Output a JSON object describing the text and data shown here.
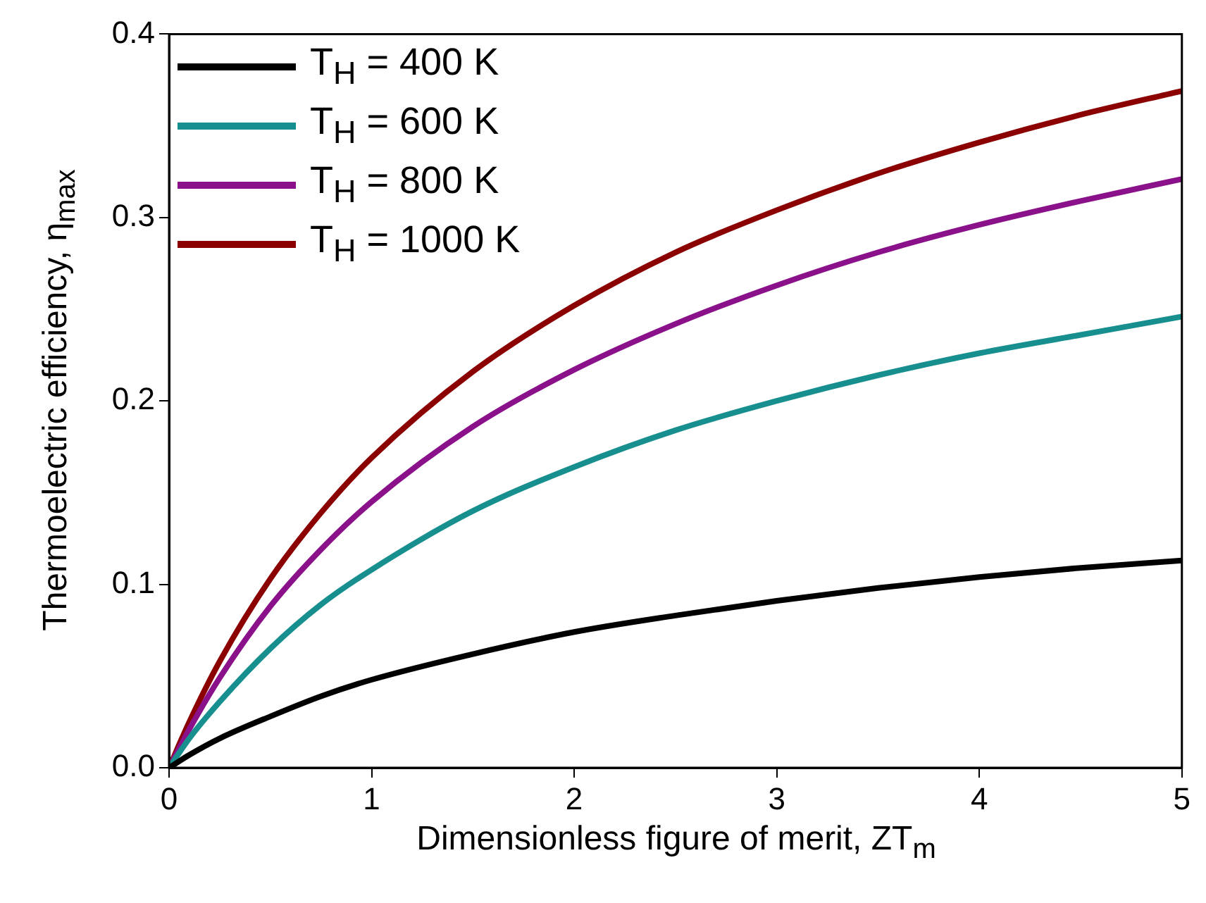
{
  "chart_data": {
    "type": "line",
    "xlabel": "Dimensionless figure of merit, ZT$_{m}$",
    "ylabel": "Thermoelectric efficiency, η$_{max}$",
    "x": [
      0,
      0.1,
      0.25,
      0.5,
      0.75,
      1,
      1.5,
      2,
      2.5,
      3,
      3.5,
      4,
      4.5,
      5
    ],
    "series": [
      {
        "name": "T$_{H}$ = 400 K",
        "color": "#000000",
        "values": [
          0,
          0.007,
          0.016,
          0.028,
          0.039,
          0.048,
          0.062,
          0.074,
          0.083,
          0.091,
          0.098,
          0.104,
          0.109,
          0.113
        ]
      },
      {
        "name": "T$_{H}$ = 600 K",
        "color": "#178f8f",
        "values": [
          0,
          0.016,
          0.036,
          0.065,
          0.089,
          0.108,
          0.14,
          0.164,
          0.184,
          0.2,
          0.214,
          0.226,
          0.236,
          0.246
        ]
      },
      {
        "name": "T$_{H}$ = 800 K",
        "color": "#8b118b",
        "values": [
          0,
          0.021,
          0.049,
          0.088,
          0.119,
          0.145,
          0.186,
          0.217,
          0.242,
          0.263,
          0.281,
          0.296,
          0.309,
          0.321
        ]
      },
      {
        "name": "T$_{H}$ = 1000 K",
        "color": "#8b0000",
        "values": [
          0,
          0.025,
          0.058,
          0.103,
          0.139,
          0.169,
          0.216,
          0.252,
          0.281,
          0.304,
          0.324,
          0.341,
          0.356,
          0.369
        ]
      }
    ],
    "xlim": [
      0,
      5
    ],
    "xticks": [
      0,
      1,
      2,
      3,
      4,
      5
    ],
    "ylim": [
      0,
      0.4
    ],
    "yticks": [
      {
        "value": 0,
        "label": "0.0"
      },
      0.1,
      0.2,
      0.3,
      0.4
    ],
    "grid": false,
    "legend": "top left",
    "marker": "none",
    "line_style": "solid"
  }
}
